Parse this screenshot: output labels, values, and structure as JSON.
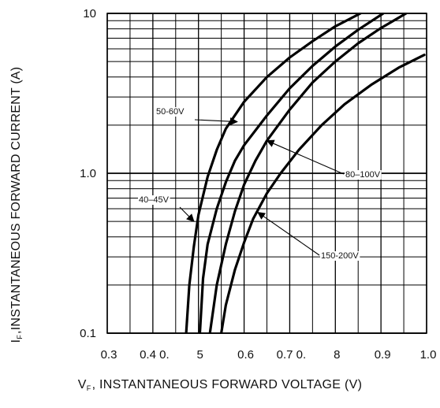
{
  "chart_data": {
    "type": "line",
    "title": "",
    "xlabel_prefix": "V",
    "xlabel_sub": "F",
    "xlabel_rest": ", INSTANTANEOUS FORWARD VOLTAGE (V)",
    "ylabel_prefix": "I",
    "ylabel_sub": "F",
    "ylabel_rest": ",INSTANTANEOUS FORWARD CURRENT (A)",
    "xlim": [
      0.3,
      1.0
    ],
    "ylim": [
      0.1,
      10
    ],
    "y_scale": "log",
    "grid": true,
    "x_tick_labels": [
      "0.3",
      "0.4 0.",
      "5",
      "0.6",
      "0.7 0.",
      "8",
      "0.9",
      "1.0"
    ],
    "y_tick_labels": [
      {
        "value": 10,
        "label": "10"
      },
      {
        "value": 1,
        "label": "1.0"
      },
      {
        "value": 0.1,
        "label": "0.1"
      }
    ],
    "series": [
      {
        "name": "40-45V",
        "x": [
          0.473,
          0.48,
          0.49,
          0.5,
          0.52,
          0.54,
          0.56,
          0.6,
          0.65,
          0.7,
          0.75,
          0.8,
          0.855
        ],
        "y": [
          0.1,
          0.2,
          0.35,
          0.55,
          0.95,
          1.4,
          1.9,
          2.8,
          4.0,
          5.3,
          6.7,
          8.3,
          10
        ]
      },
      {
        "name": "50-60V",
        "x": [
          0.503,
          0.51,
          0.52,
          0.54,
          0.56,
          0.58,
          0.6,
          0.65,
          0.7,
          0.75,
          0.8,
          0.85,
          0.905
        ],
        "y": [
          0.1,
          0.22,
          0.36,
          0.6,
          0.88,
          1.2,
          1.5,
          2.3,
          3.4,
          4.7,
          6.2,
          7.9,
          10
        ]
      },
      {
        "name": "80-100V",
        "x": [
          0.525,
          0.54,
          0.56,
          0.58,
          0.6,
          0.625,
          0.65,
          0.7,
          0.75,
          0.8,
          0.85,
          0.9,
          0.955
        ],
        "y": [
          0.1,
          0.2,
          0.36,
          0.58,
          0.85,
          1.2,
          1.6,
          2.5,
          3.7,
          5.0,
          6.5,
          8.1,
          10
        ]
      },
      {
        "name": "150-200V",
        "x": [
          0.55,
          0.56,
          0.58,
          0.6,
          0.62,
          0.65,
          0.68,
          0.72,
          0.77,
          0.82,
          0.88,
          0.94,
          0.995
        ],
        "y": [
          0.1,
          0.15,
          0.25,
          0.37,
          0.52,
          0.75,
          1.0,
          1.4,
          2.0,
          2.7,
          3.6,
          4.6,
          5.5
        ]
      }
    ],
    "annotations": [
      {
        "text": "50-60V",
        "target_x": 0.585,
        "target_y": 2.1
      },
      {
        "text": "40–45V",
        "target_x": 0.49,
        "target_y": 0.5
      },
      {
        "text": "80–100V",
        "target_x": 0.65,
        "target_y": 1.6
      },
      {
        "text": "150-200V",
        "target_x": 0.63,
        "target_y": 0.57
      }
    ]
  }
}
